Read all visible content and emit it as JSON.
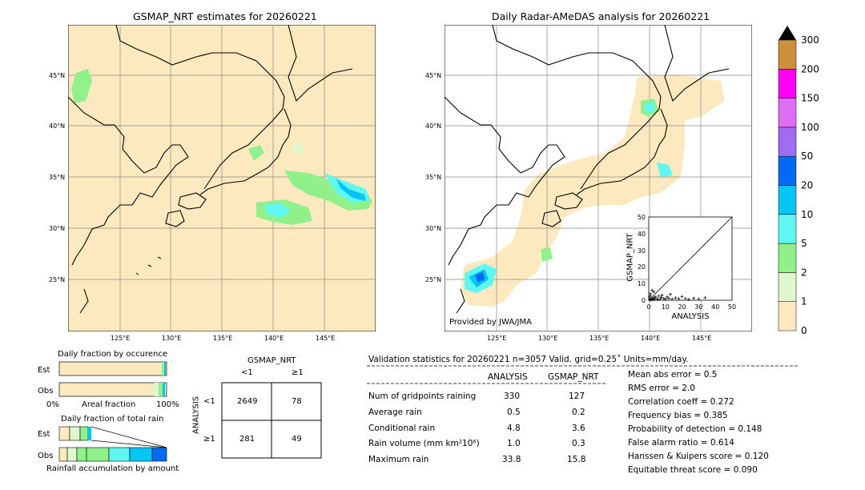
{
  "maps": {
    "left_title": "GSMAP_NRT estimates for 20260221",
    "right_title": "Daily Radar-AMeDAS analysis for 20260221",
    "lat_labels": [
      "45°N",
      "40°N",
      "35°N",
      "30°N",
      "25°N"
    ],
    "lon_labels": [
      "125°E",
      "130°E",
      "135°E",
      "140°E",
      "145°E"
    ],
    "credit": "Provided by JWA/JMA"
  },
  "colorbar": {
    "tick_labels": [
      "0",
      "1",
      "2",
      "5",
      "10",
      "20",
      "50",
      "100",
      "150",
      "200",
      "300"
    ],
    "colors": [
      "#fde9bf",
      "#dff7cf",
      "#90f08a",
      "#5ff7f2",
      "#00c6f5",
      "#006cf5",
      "#a06cf5",
      "#df6cf5",
      "#ff00f5",
      "#cd8f3a"
    ]
  },
  "occurrence": {
    "title": "Daily fraction by occurence",
    "est_label": "Est",
    "obs_label": "Obs",
    "axis_left": "0%",
    "axis_mid": "Areal fraction",
    "axis_right": "100%"
  },
  "total_rain": {
    "title": "Daily fraction of total rain",
    "est_label": "Est",
    "obs_label": "Obs",
    "caption": "Rainfall accumulation by amount"
  },
  "contingency": {
    "header": "GSMAP_NRT",
    "col_lt": "<1",
    "col_ge": "≥1",
    "row_axis": "ANALYSIS",
    "row_lt": "<1",
    "row_ge": "≥1",
    "cells": [
      "2649",
      "78",
      "281",
      "49"
    ]
  },
  "scatter": {
    "ylabel": "GSMAP_NRT",
    "xlabel": "ANALYSIS",
    "ticks": [
      "0",
      "10",
      "20",
      "30",
      "40",
      "50"
    ]
  },
  "validation": {
    "header": "Validation statistics for 20260221  n=3057 Valid. grid=0.25˚ Units=mm/day.",
    "col_analysis": "ANALYSIS",
    "col_gsmap": "GSMAP_NRT",
    "rows": [
      {
        "label": "Num of gridpoints raining",
        "analysis": "330",
        "gsmap": "127"
      },
      {
        "label": "Average rain",
        "analysis": "0.5",
        "gsmap": "0.2"
      },
      {
        "label": "Conditional rain",
        "analysis": "4.8",
        "gsmap": "3.6"
      },
      {
        "label": "Rain volume (mm km²10⁶)",
        "analysis": "1.0",
        "gsmap": "0.3"
      },
      {
        "label": "Maximum rain",
        "analysis": "33.8",
        "gsmap": "15.8"
      }
    ],
    "scores": [
      "Mean abs error =    0.5",
      "RMS error =    2.0",
      "Correlation coeff =  0.272",
      "Frequency bias =  0.385",
      "Probability of detection =  0.148",
      "False alarm ratio =  0.614",
      "Hanssen & Kuipers score =  0.120",
      "Equitable threat score =  0.090"
    ]
  },
  "chart_data": [
    {
      "type": "scatter",
      "xlabel": "ANALYSIS",
      "ylabel": "GSMAP_NRT",
      "xlim": [
        0,
        50
      ],
      "ylim": [
        0,
        50
      ],
      "points": [
        [
          0.5,
          0.3
        ],
        [
          1,
          0.5
        ],
        [
          1.5,
          0.2
        ],
        [
          2,
          1
        ],
        [
          2.5,
          0.4
        ],
        [
          3,
          1.5
        ],
        [
          3.5,
          0.6
        ],
        [
          4,
          2
        ],
        [
          5,
          1
        ],
        [
          5.5,
          0.3
        ],
        [
          6,
          2.5
        ],
        [
          7,
          0.8
        ],
        [
          7.5,
          1.7
        ],
        [
          8,
          3
        ],
        [
          9,
          1
        ],
        [
          10,
          0.6
        ],
        [
          11,
          2
        ],
        [
          12,
          1.2
        ],
        [
          13,
          3.5
        ],
        [
          14,
          0.7
        ],
        [
          16,
          1.4
        ],
        [
          18,
          0.9
        ],
        [
          20,
          2.2
        ],
        [
          22,
          1
        ],
        [
          24,
          0.5
        ],
        [
          27,
          1.2
        ],
        [
          30,
          0.8
        ],
        [
          33.8,
          1.5
        ],
        [
          1,
          4
        ],
        [
          2,
          6
        ],
        [
          3,
          5
        ],
        [
          1,
          3
        ],
        [
          0.5,
          2
        ]
      ]
    }
  ]
}
